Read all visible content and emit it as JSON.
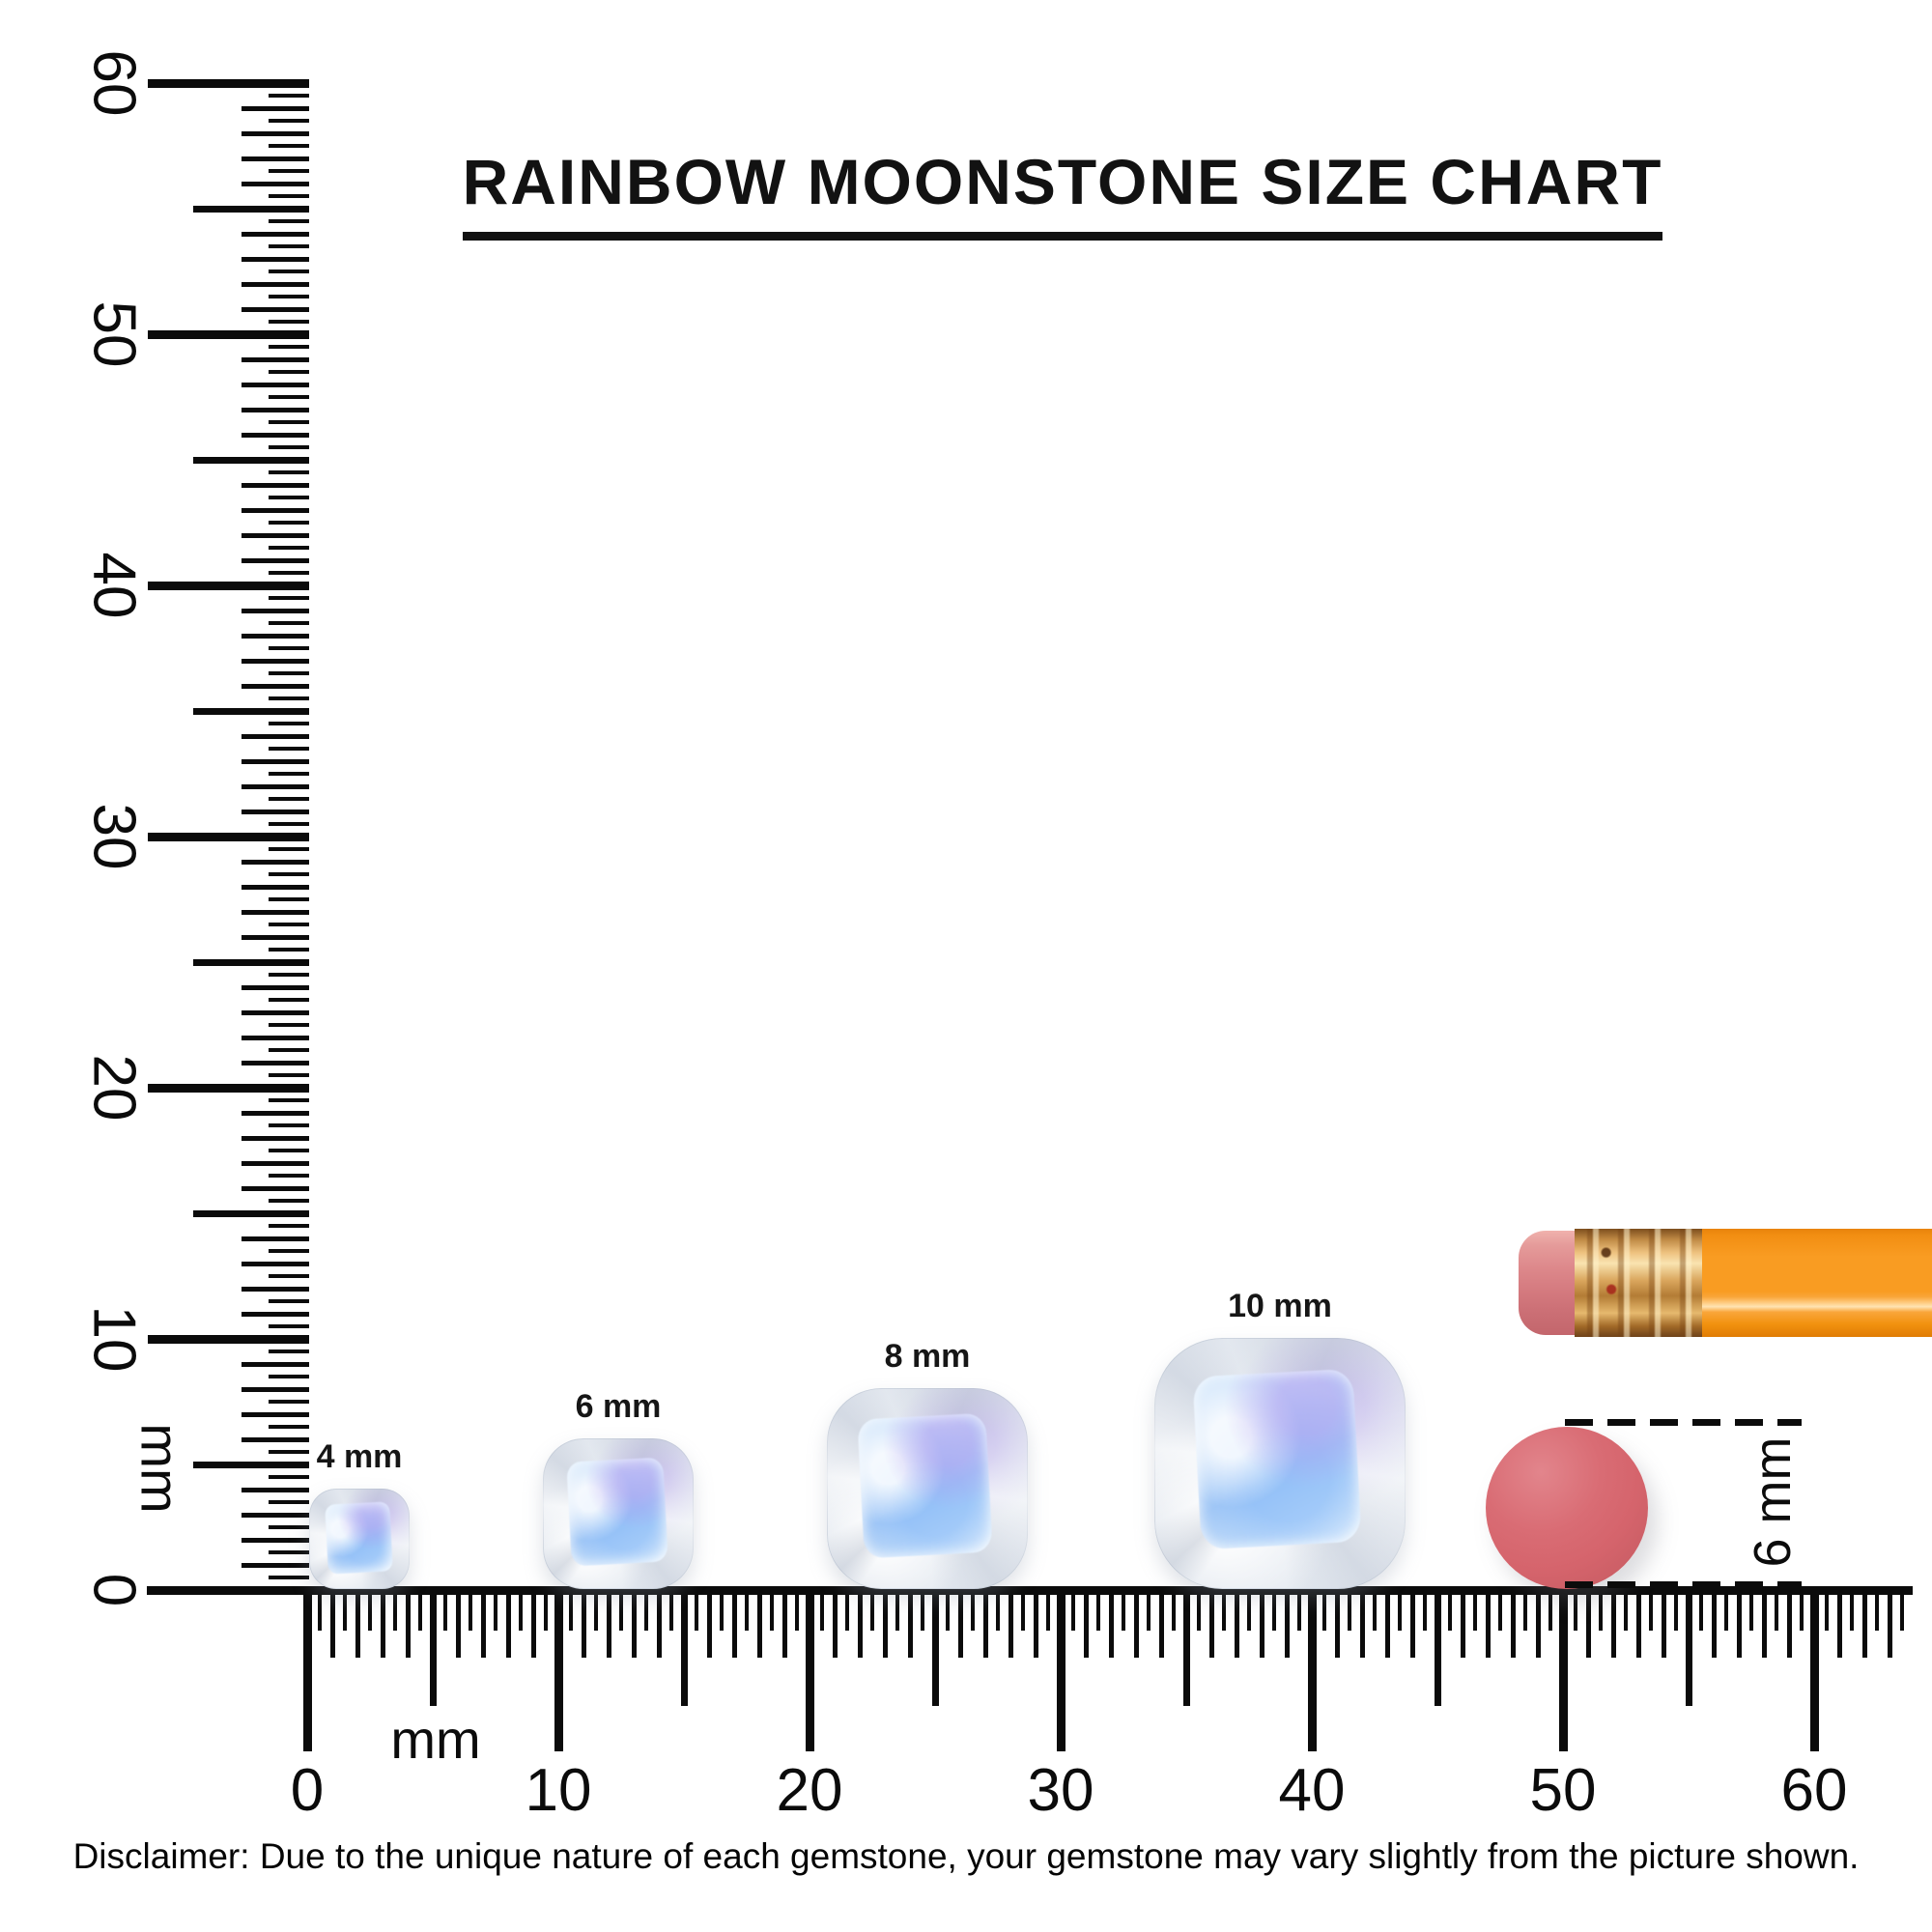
{
  "title": "RAINBOW MOONSTONE SIZE CHART",
  "rulers": {
    "range_mm": [
      0,
      60
    ],
    "tick_step_mm": 0.5,
    "vertical": {
      "unit": "mm",
      "labels": [
        "60",
        "50",
        "40",
        "30",
        "20",
        "10",
        "0"
      ]
    },
    "horizontal": {
      "unit": "mm",
      "labels": [
        "0",
        "10",
        "20",
        "30",
        "40",
        "50",
        "60"
      ]
    }
  },
  "gems": [
    {
      "label": "4 mm",
      "size_mm": 4
    },
    {
      "label": "6 mm",
      "size_mm": 6
    },
    {
      "label": "8 mm",
      "size_mm": 8
    },
    {
      "label": "10 mm",
      "size_mm": 10
    }
  ],
  "reference_objects": {
    "eraser_dot": {
      "measure_label": "6 mm",
      "color": "#d5646c"
    },
    "pencil": {
      "body_color": "#f89a1f",
      "ferrule_color": "#d9a55c",
      "eraser_color": "#dd888b"
    }
  },
  "gem_colors": {
    "rim": "#e8edf3",
    "blue": "#a6caf6",
    "violet": "#baa2f0"
  },
  "disclaimer": "Disclaimer: Due to the unique nature of each gemstone, your gemstone may vary slightly from the picture shown."
}
